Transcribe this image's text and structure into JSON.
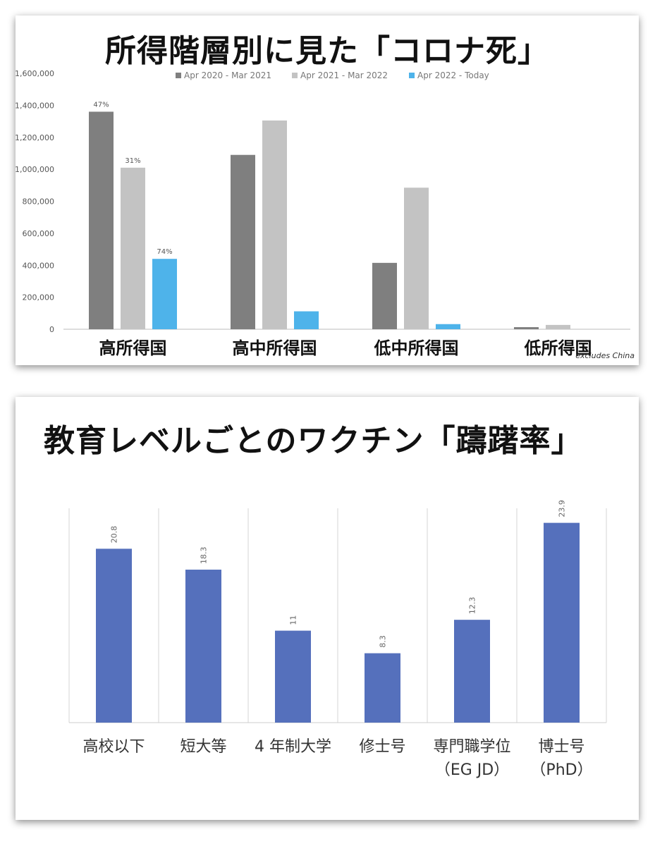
{
  "charts": [
    {
      "title": "所得階層別に見た「コロナ死」",
      "note": "excludes China",
      "chart_data": {
        "type": "bar",
        "title": "所得階層別に見た「コロナ死」",
        "categories": [
          "高所得国",
          "高中所得国",
          "低中所得国",
          "低所得国"
        ],
        "series": [
          {
            "name": "Apr 2020 - Mar 2021",
            "color": "#7f7f7f",
            "values": [
              1360000,
              1090000,
              415000,
              13000
            ],
            "labels": [
              "",
              "",
              "",
              ""
            ]
          },
          {
            "name": "Apr 2021 - Mar 2022",
            "color": "#c3c3c3",
            "values": [
              1010000,
              1305000,
              885000,
              27000
            ],
            "labels": [
              "31%",
              "",
              "",
              ""
            ]
          },
          {
            "name": "Apr 2022 - Today",
            "color": "#4eb3ea",
            "values": [
              440000,
              112000,
              32000,
              0
            ],
            "labels": [
              "74%",
              "",
              "",
              ""
            ]
          }
        ],
        "top_label": "47%",
        "ylim": [
          0,
          1600000
        ],
        "yticks": [
          "0",
          "200,000",
          "400,000",
          "600,000",
          "800,000",
          "1,000,000",
          "1,200,000",
          "1,400,000",
          "1,600,000"
        ],
        "legend": "top",
        "grid": false
      }
    },
    {
      "title": "教育レベルごとのワクチン「躊躇率」",
      "chart_data": {
        "type": "bar",
        "title": "教育レベルごとのワクチン「躊躇率」",
        "categories": [
          "高校以下",
          "短大等",
          "4 年制大学",
          "修士号",
          "専門職学位\n（EG JD）",
          "博士号\n（PhD）"
        ],
        "values": [
          20.8,
          18.3,
          11,
          8.3,
          12.3,
          23.9
        ],
        "value_labels": [
          "20.8",
          "18.3",
          "11",
          "8.3",
          "12.3",
          "23.9"
        ],
        "color": "#5570bc",
        "ylim": [
          0,
          28
        ],
        "grid": "vertical separators"
      }
    }
  ]
}
